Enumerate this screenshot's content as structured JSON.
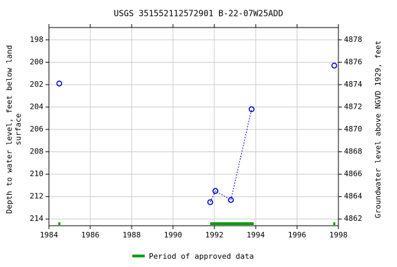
{
  "chart_data": {
    "type": "scatter",
    "title": "USGS 351552112572901 B-22-07W25ADD",
    "y_label": [
      "Depth to water level, feet below land",
      "surface"
    ],
    "y2_label": "Groundwater level above NGVD 1929, feet",
    "x": [
      1984.5,
      1991.8,
      1992.05,
      1992.8,
      1993.8,
      1997.8
    ],
    "series": [
      {
        "name": "Depth to water level",
        "color": "#0000cc",
        "values": [
          201.9,
          212.5,
          211.5,
          212.3,
          204.2,
          200.3
        ]
      }
    ],
    "xlim": [
      1984,
      1998
    ],
    "xticks": [
      1984,
      1986,
      1988,
      1990,
      1992,
      1994,
      1996,
      1998
    ],
    "ylim": [
      214.6,
      196.9
    ],
    "yticks": [
      198,
      200,
      202,
      204,
      206,
      208,
      210,
      212,
      214
    ],
    "y2lim": [
      4861.4,
      4879.1
    ],
    "y2ticks": [
      4862,
      4864,
      4866,
      4868,
      4870,
      4872,
      4874,
      4876,
      4878
    ],
    "grid": true,
    "approved": {
      "name": "Period of approved data",
      "color": "#00a000",
      "periods": [
        [
          1984.45,
          1984.55
        ],
        [
          1991.8,
          1993.9
        ],
        [
          1997.75,
          1997.85
        ]
      ]
    }
  }
}
